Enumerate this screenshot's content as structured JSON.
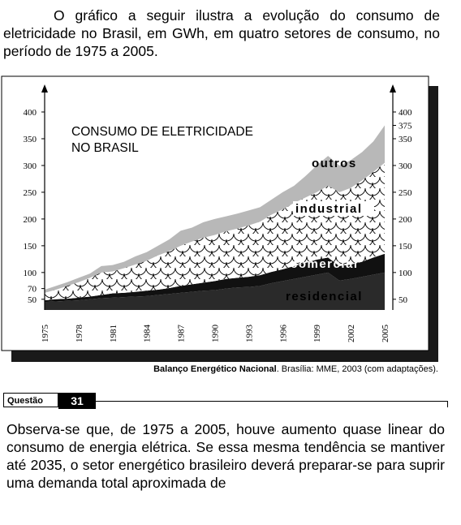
{
  "intro_text": "O gráfico a seguir ilustra a evolução do consumo de eletricidade no Brasil, em GWh, em quatro setores de consumo, no período de 1975 a 2005.",
  "chart_data": {
    "type": "area",
    "stacked": true,
    "title": "CONSUMO DE ELETRICIDADE NO BRASIL",
    "title_lines": [
      "CONSUMO DE ELETRICIDADE",
      "NO BRASIL"
    ],
    "xlabel": "",
    "ylabel": "",
    "x_ticks": [
      "1975",
      "1978",
      "1981",
      "1984",
      "1987",
      "1990",
      "1993",
      "1996",
      "1999",
      "2002",
      "2005"
    ],
    "y_ticks_left": [
      "50",
      "70",
      "100",
      "150",
      "200",
      "250",
      "300",
      "350",
      "400"
    ],
    "y_ticks_right": [
      "50",
      "100",
      "150",
      "200",
      "250",
      "300",
      "350",
      "375",
      "400"
    ],
    "xlim": [
      1975,
      2005
    ],
    "ylim": [
      30,
      420
    ],
    "grid": false,
    "years": [
      1975,
      1976,
      1977,
      1978,
      1979,
      1980,
      1981,
      1982,
      1983,
      1984,
      1985,
      1986,
      1987,
      1988,
      1989,
      1990,
      1991,
      1992,
      1993,
      1994,
      1995,
      1996,
      1997,
      1998,
      1999,
      2000,
      2001,
      2002,
      2003,
      2004,
      2005
    ],
    "series": [
      {
        "name": "residencial",
        "fill": "#2a2a2a",
        "values": [
          45,
          46,
          47,
          48,
          50,
          52,
          53,
          54,
          55,
          56,
          58,
          60,
          62,
          64,
          66,
          67,
          70,
          72,
          73,
          75,
          80,
          84,
          88,
          92,
          96,
          100,
          85,
          88,
          92,
          96,
          100
        ]
      },
      {
        "name": "comercial",
        "fill": "#111111",
        "values": [
          48,
          50,
          51,
          53,
          55,
          58,
          61,
          62,
          64,
          66,
          68,
          71,
          75,
          78,
          81,
          84,
          88,
          90,
          92,
          95,
          101,
          106,
          112,
          118,
          124,
          128,
          112,
          115,
          120,
          128,
          135
        ]
      },
      {
        "name": "industrial",
        "fill": "scales",
        "values": [
          62,
          68,
          75,
          82,
          90,
          100,
          102,
          108,
          115,
          122,
          132,
          140,
          150,
          158,
          165,
          170,
          177,
          182,
          188,
          195,
          208,
          218,
          230,
          240,
          250,
          262,
          250,
          258,
          272,
          288,
          305
        ]
      },
      {
        "name": "outros",
        "fill": "#b8b8b8",
        "values": [
          68,
          75,
          82,
          90,
          98,
          112,
          114,
          120,
          130,
          138,
          150,
          162,
          178,
          184,
          194,
          200,
          205,
          210,
          216,
          222,
          236,
          250,
          262,
          280,
          300,
          318,
          300,
          310,
          325,
          345,
          375
        ]
      }
    ]
  },
  "source": {
    "bold": "Balanço Energético Nacional",
    "rest": ". Brasília: MME, 2003 (com adaptações)."
  },
  "question": {
    "label": "Questão",
    "number": "31",
    "text": "Observa-se que, de 1975 a 2005, houve aumento quase linear do consumo de energia elétrica. Se essa mesma tendência se mantiver até 2035, o setor energético brasileiro deverá preparar-se para suprir uma demanda total aproximada de"
  },
  "colors": {
    "shadow": "#1a1a1a",
    "outros": "#b8b8b8",
    "residencial": "#2a2a2a",
    "comercial": "#111111"
  }
}
